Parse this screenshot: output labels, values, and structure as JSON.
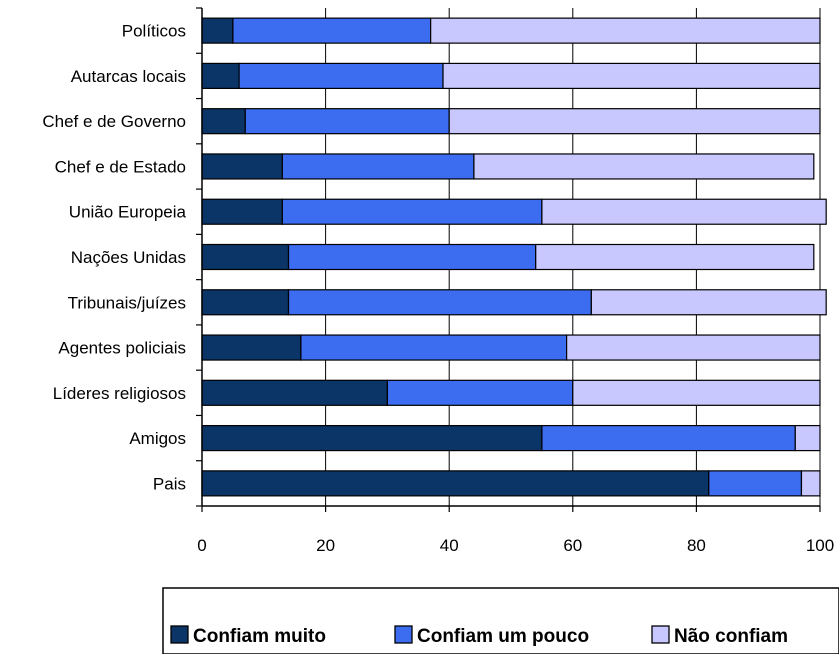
{
  "chart_data": {
    "type": "bar",
    "orientation": "horizontal",
    "stacked": true,
    "title": "",
    "xlabel": "",
    "ylabel": "",
    "xlim": [
      0,
      100
    ],
    "x_ticks": [
      "0",
      "20",
      "40",
      "60",
      "80",
      "100"
    ],
    "grid": true,
    "legend_position": "bottom",
    "categories": [
      "Políticos",
      "Autarcas locais",
      "Chef e de Governo",
      "Chef e de Estado",
      "União Europeia",
      "Nações Unidas",
      "Tribunais/juízes",
      "Agentes policiais",
      "Líderes religiosos",
      "Amigos",
      "Pais"
    ],
    "series": [
      {
        "name": "Confiam muito",
        "color": "#0b3566",
        "values": [
          5,
          6,
          7,
          13,
          13,
          14,
          14,
          16,
          30,
          55,
          82
        ]
      },
      {
        "name": "Confiam um pouco",
        "color": "#3c6cf0",
        "values": [
          32,
          33,
          33,
          31,
          42,
          40,
          49,
          43,
          30,
          41,
          15
        ]
      },
      {
        "name": "Não confiam",
        "color": "#c8c8ff",
        "values": [
          63,
          61,
          60,
          55,
          46,
          45,
          38,
          41,
          40,
          4,
          3
        ]
      }
    ]
  }
}
